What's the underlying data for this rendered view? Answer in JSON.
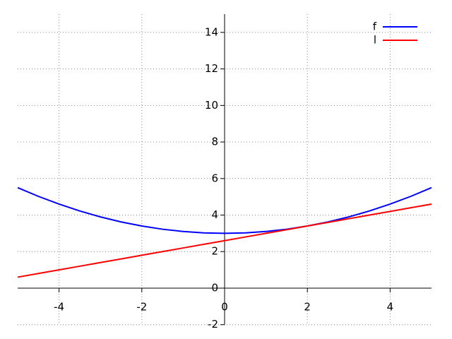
{
  "chart_data": {
    "type": "line",
    "x": [
      -5,
      -4.5,
      -4,
      -3.5,
      -3,
      -2.5,
      -2,
      -1.5,
      -1,
      -0.5,
      0,
      0.5,
      1,
      1.5,
      2,
      2.5,
      3,
      3.5,
      4,
      4.5,
      5
    ],
    "series": [
      {
        "name": "f",
        "color": "#0000ff",
        "values": [
          5.5,
          5.025,
          4.6,
          4.225,
          3.9,
          3.625,
          3.4,
          3.225,
          3.1,
          3.025,
          3,
          3.025,
          3.1,
          3.225,
          3.4,
          3.625,
          3.9,
          4.225,
          4.6,
          5.025,
          5.5
        ]
      },
      {
        "name": "l",
        "color": "#ff0000",
        "values": [
          0.6,
          0.8,
          1.0,
          1.2,
          1.4,
          1.6,
          1.8,
          2.0,
          2.2,
          2.4,
          2.6,
          2.8,
          3.0,
          3.2,
          3.4,
          3.6,
          3.8,
          4.0,
          4.2,
          4.4,
          4.6
        ]
      }
    ],
    "xlim": [
      -5,
      5
    ],
    "xticks": [
      -4,
      -2,
      0,
      2,
      4
    ],
    "ylim": [
      -2,
      15
    ],
    "yticks": [
      -2,
      0,
      2,
      4,
      6,
      8,
      10,
      12,
      14
    ],
    "grid": true,
    "legend": "top-right"
  }
}
